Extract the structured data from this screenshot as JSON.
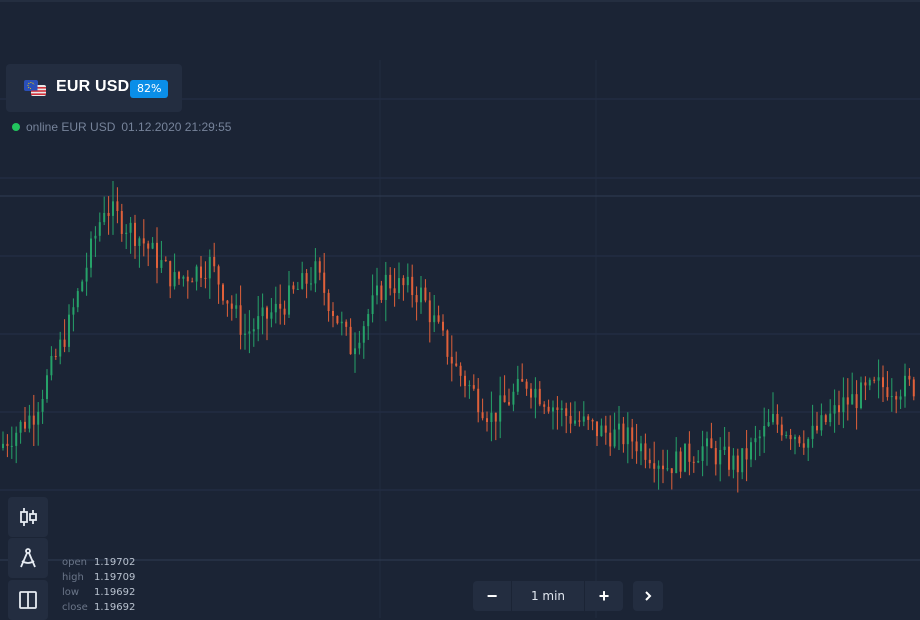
{
  "asset": {
    "name": "EUR USD",
    "payout": "82%",
    "flag_icon": "eu-us-flag-icon"
  },
  "status": {
    "text": "online EUR USD",
    "datetime": "01.12.2020 21:29:55",
    "color": "#22c55e"
  },
  "colors": {
    "background": "#1b2435",
    "panel": "#232d40",
    "bull": "#26a269",
    "bear": "#e0603a",
    "accent": "#0a8ee8"
  },
  "toolbar": [
    {
      "icon": "candlestick-chart-icon"
    },
    {
      "icon": "drawing-compass-icon"
    },
    {
      "icon": "split-layout-icon"
    }
  ],
  "ohlc": [
    {
      "label": "open",
      "value": "1.19702"
    },
    {
      "label": "high",
      "value": "1.19709"
    },
    {
      "label": "low",
      "value": "1.19692"
    },
    {
      "label": "close",
      "value": "1.19692"
    }
  ],
  "timeframe": {
    "minus": "−",
    "label": "1 min",
    "plus": "+",
    "next_icon": "chevron-right-icon"
  },
  "chart_data": {
    "type": "candlestick",
    "trend_path": [
      [
        0,
        1.1971
      ],
      [
        8,
        1.19718
      ],
      [
        16,
        1.19738
      ],
      [
        24,
        1.19765
      ],
      [
        32,
        1.19758
      ],
      [
        40,
        1.19748
      ],
      [
        48,
        1.19752
      ],
      [
        56,
        1.19736
      ],
      [
        64,
        1.19742
      ],
      [
        72,
        1.1975
      ],
      [
        80,
        1.19733
      ],
      [
        88,
        1.19748
      ],
      [
        96,
        1.19745
      ],
      [
        104,
        1.19728
      ],
      [
        112,
        1.19717
      ],
      [
        120,
        1.19725
      ],
      [
        128,
        1.19718
      ],
      [
        136,
        1.19714
      ],
      [
        144,
        1.19712
      ],
      [
        152,
        1.19706
      ],
      [
        160,
        1.1971
      ],
      [
        168,
        1.19706
      ],
      [
        176,
        1.19716
      ],
      [
        184,
        1.19712
      ],
      [
        192,
        1.1972
      ],
      [
        200,
        1.19724
      ],
      [
        208,
        1.19724
      ],
      [
        216,
        1.19728
      ]
    ],
    "grid": true
  }
}
